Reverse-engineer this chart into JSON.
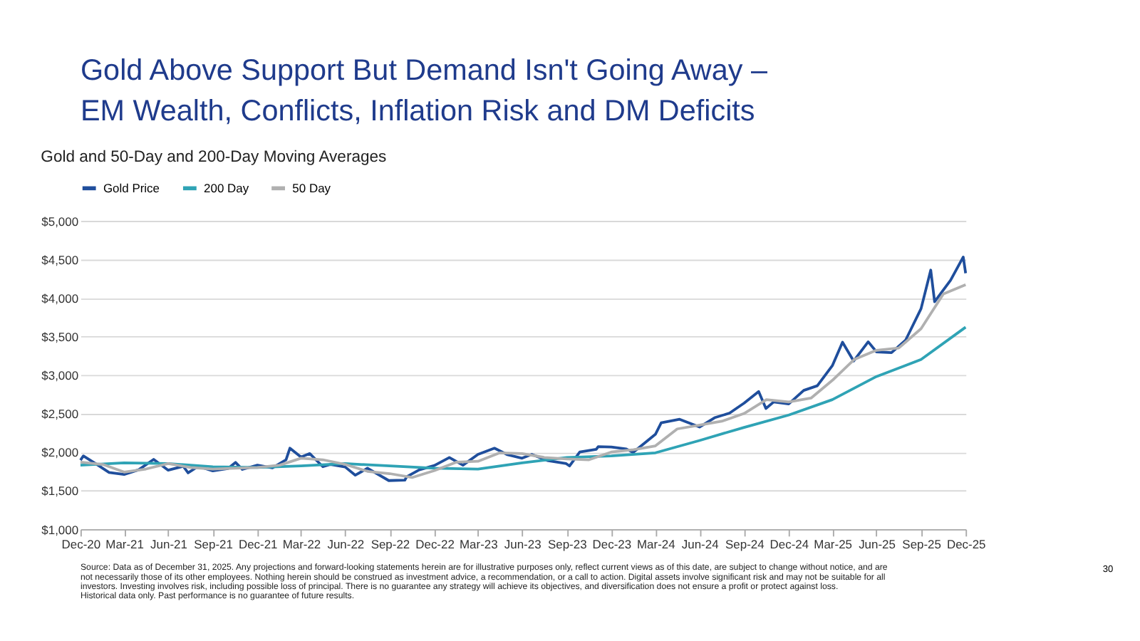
{
  "chart_data": {
    "type": "line",
    "title": "Gold Above Support But Demand Isn't Going Away –\nEM Wealth, Conflicts, Inflation Risk and DM Deficits",
    "subtitle": "Gold and 50-Day and 200-Day Moving Averages",
    "annotations": [
      "Source: Data as of December 31, 2025. Any projections and forward-looking statements herein are for illustrative purposes only, reflect current views as of this date, are subject to change without notice, and are not necessarily those of its other employees. Nothing herein should be construed as investment advice, a recommendation, or a call to action. Digital assets involve significant risk and may not be suitable for all investors. Investing involves risk, including possible loss of principal. There is no guarantee any strategy will achieve its objectives, and diversification does not ensure a profit or protect against loss. Historical data only. Past performance is no guarantee of future results.",
      "30"
    ],
    "series": [
      {
        "name": "Gold Price",
        "color": "#1f4e9c",
        "x": [
          "2020-12-31",
          "2021-01-06",
          "2021-01-31",
          "2021-02-28",
          "2021-03-31",
          "2021-04-30",
          "2021-05-31",
          "2021-06-30",
          "2021-07-31",
          "2021-08-10",
          "2021-08-31",
          "2021-09-30",
          "2021-10-31",
          "2021-11-16",
          "2021-11-30",
          "2021-12-31",
          "2022-01-31",
          "2022-02-28",
          "2022-03-08",
          "2022-03-31",
          "2022-04-18",
          "2022-05-15",
          "2022-05-31",
          "2022-06-30",
          "2022-07-21",
          "2022-08-15",
          "2022-09-28",
          "2022-10-31",
          "2022-11-04",
          "2022-11-30",
          "2022-12-31",
          "2023-01-31",
          "2023-02-28",
          "2023-03-31",
          "2023-05-04",
          "2023-05-31",
          "2023-06-30",
          "2023-07-20",
          "2023-08-21",
          "2023-09-29",
          "2023-10-06",
          "2023-10-27",
          "2023-11-30",
          "2023-12-04",
          "2023-12-31",
          "2024-01-31",
          "2024-02-14",
          "2024-03-31",
          "2024-04-12",
          "2024-05-20",
          "2024-06-30",
          "2024-07-31",
          "2024-08-31",
          "2024-09-30",
          "2024-10-30",
          "2024-11-14",
          "2024-11-30",
          "2024-12-31",
          "2025-01-31",
          "2025-02-28",
          "2025-03-31",
          "2025-04-21",
          "2025-05-14",
          "2025-06-13",
          "2025-06-30",
          "2025-07-31",
          "2025-08-29",
          "2025-09-30",
          "2025-10-20",
          "2025-10-28",
          "2025-11-30",
          "2025-12-26",
          "2025-12-31"
        ],
        "values": [
          1895,
          1950,
          1850,
          1735,
          1710,
          1770,
          1905,
          1765,
          1815,
          1730,
          1815,
          1755,
          1785,
          1865,
          1775,
          1830,
          1795,
          1900,
          2050,
          1935,
          1980,
          1810,
          1840,
          1807,
          1700,
          1790,
          1630,
          1635,
          1680,
          1770,
          1825,
          1930,
          1830,
          1970,
          2050,
          1965,
          1920,
          1970,
          1890,
          1850,
          1820,
          2000,
          2035,
          2070,
          2065,
          2040,
          1995,
          2230,
          2380,
          2425,
          2325,
          2445,
          2505,
          2635,
          2785,
          2565,
          2650,
          2625,
          2800,
          2860,
          3120,
          3425,
          3180,
          3430,
          3300,
          3290,
          3450,
          3860,
          4360,
          3950,
          4230,
          4530,
          4320
        ]
      },
      {
        "name": "200 Day",
        "color": "#2fa3b5",
        "x": [
          "2020-12-31",
          "2021-03-31",
          "2021-06-30",
          "2021-09-30",
          "2021-12-31",
          "2022-03-31",
          "2022-06-30",
          "2022-09-30",
          "2022-12-31",
          "2023-03-31",
          "2023-06-30",
          "2023-09-30",
          "2023-12-31",
          "2024-03-31",
          "2024-06-30",
          "2024-09-30",
          "2024-12-31",
          "2025-03-31",
          "2025-06-30",
          "2025-09-30",
          "2025-12-31"
        ],
        "values": [
          1830,
          1860,
          1850,
          1810,
          1800,
          1820,
          1850,
          1820,
          1790,
          1780,
          1860,
          1930,
          1950,
          1990,
          2150,
          2320,
          2480,
          2680,
          2980,
          3200,
          3620
        ]
      },
      {
        "name": "50 Day",
        "color": "#b0b0b0",
        "x": [
          "2020-12-31",
          "2021-02-15",
          "2021-03-31",
          "2021-05-15",
          "2021-06-30",
          "2021-08-15",
          "2021-09-30",
          "2021-11-15",
          "2021-12-31",
          "2022-02-15",
          "2022-03-31",
          "2022-05-15",
          "2022-06-30",
          "2022-08-15",
          "2022-09-30",
          "2022-11-15",
          "2022-12-31",
          "2023-02-15",
          "2023-03-31",
          "2023-05-15",
          "2023-06-30",
          "2023-08-15",
          "2023-09-30",
          "2023-11-15",
          "2023-12-31",
          "2024-02-15",
          "2024-03-31",
          "2024-05-15",
          "2024-06-30",
          "2024-08-15",
          "2024-09-30",
          "2024-11-15",
          "2024-12-31",
          "2025-02-15",
          "2025-03-31",
          "2025-05-15",
          "2025-06-30",
          "2025-08-15",
          "2025-09-30",
          "2025-11-15",
          "2025-12-31"
        ],
        "values": [
          1870,
          1840,
          1740,
          1780,
          1850,
          1800,
          1780,
          1790,
          1800,
          1830,
          1920,
          1900,
          1840,
          1750,
          1720,
          1670,
          1760,
          1870,
          1880,
          1990,
          1980,
          1930,
          1910,
          1900,
          2000,
          2030,
          2080,
          2300,
          2350,
          2400,
          2500,
          2680,
          2650,
          2700,
          2930,
          3200,
          3320,
          3350,
          3600,
          4050,
          4170
        ]
      }
    ],
    "xlim": [
      "2020-12-31",
      "2025-12-31"
    ],
    "xticks": [
      {
        "value": "2020-12-31",
        "label": "Dec-20"
      },
      {
        "value": "2021-03-31",
        "label": "Mar-21"
      },
      {
        "value": "2021-06-30",
        "label": "Jun-21"
      },
      {
        "value": "2021-09-30",
        "label": "Sep-21"
      },
      {
        "value": "2021-12-31",
        "label": "Dec-21"
      },
      {
        "value": "2022-03-31",
        "label": "Mar-22"
      },
      {
        "value": "2022-06-30",
        "label": "Jun-22"
      },
      {
        "value": "2022-09-30",
        "label": "Sep-22"
      },
      {
        "value": "2022-12-31",
        "label": "Dec-22"
      },
      {
        "value": "2023-03-31",
        "label": "Mar-23"
      },
      {
        "value": "2023-06-30",
        "label": "Jun-23"
      },
      {
        "value": "2023-09-30",
        "label": "Sep-23"
      },
      {
        "value": "2023-12-31",
        "label": "Dec-23"
      },
      {
        "value": "2024-03-31",
        "label": "Mar-24"
      },
      {
        "value": "2024-06-30",
        "label": "Jun-24"
      },
      {
        "value": "2024-09-30",
        "label": "Sep-24"
      },
      {
        "value": "2024-12-31",
        "label": "Dec-24"
      },
      {
        "value": "2025-03-31",
        "label": "Mar-25"
      },
      {
        "value": "2025-06-30",
        "label": "Jun-25"
      },
      {
        "value": "2025-09-30",
        "label": "Sep-25"
      },
      {
        "value": "2025-12-31",
        "label": "Dec-25"
      }
    ],
    "ylim": [
      1000,
      5000
    ],
    "yticks": [
      {
        "value": 1000,
        "label": "$1,000"
      },
      {
        "value": 1500,
        "label": "$1,500"
      },
      {
        "value": 2000,
        "label": "$2,000"
      },
      {
        "value": 2500,
        "label": "$2,500"
      },
      {
        "value": 3000,
        "label": "$3,000"
      },
      {
        "value": 3500,
        "label": "$3,500"
      },
      {
        "value": 4000,
        "label": "$4,000"
      },
      {
        "value": 4500,
        "label": "$4,500"
      },
      {
        "value": 5000,
        "label": "$5,000"
      }
    ],
    "grid": "y",
    "legend": "top",
    "marker": "none",
    "line_style": "solid"
  }
}
